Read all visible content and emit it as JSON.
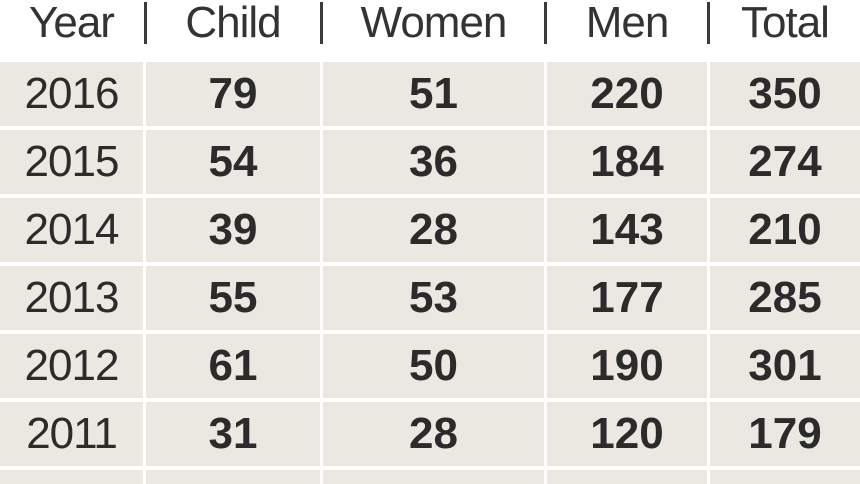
{
  "chart_data": {
    "type": "table",
    "columns": [
      "Year",
      "Child",
      "Women",
      "Men",
      "Total"
    ],
    "rows": [
      [
        "2016",
        "79",
        "51",
        "220",
        "350"
      ],
      [
        "2015",
        "54",
        "36",
        "184",
        "274"
      ],
      [
        "2014",
        "39",
        "28",
        "143",
        "210"
      ],
      [
        "2013",
        "55",
        "53",
        "177",
        "285"
      ],
      [
        "2012",
        "61",
        "50",
        "190",
        "301"
      ],
      [
        "2011",
        "31",
        "28",
        "120",
        "179"
      ]
    ]
  }
}
